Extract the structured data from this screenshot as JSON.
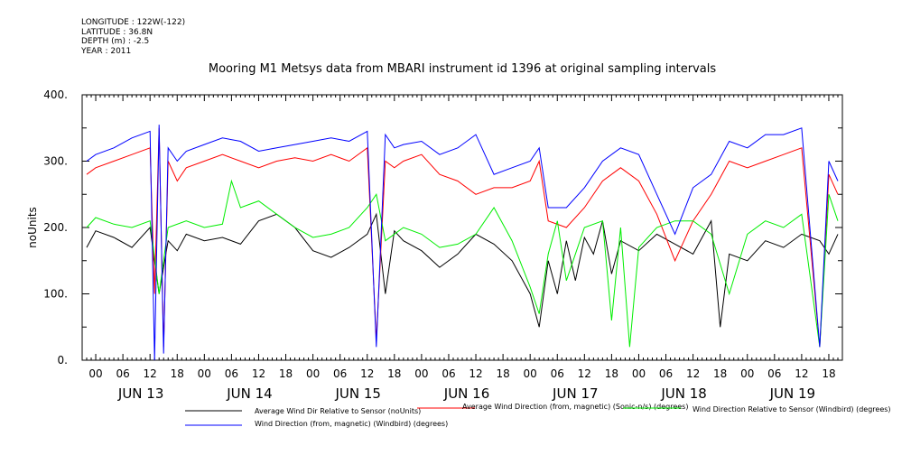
{
  "meta": {
    "longitude": "LONGITUDE : 122W(-122)",
    "latitude": "LATITUDE : 36.8N",
    "depth": "DEPTH (m) : -2.5",
    "year": "YEAR : 2011"
  },
  "chart_data": {
    "type": "line",
    "title": "Mooring M1 Metsys data from MBARI instrument id 1396 at original sampling intervals",
    "ylabel": "noUnits",
    "xlabel": "",
    "ylim": [
      0,
      400
    ],
    "yticks": [
      0,
      100,
      200,
      300,
      400
    ],
    "ytick_labels": [
      "0.",
      "100.",
      "200.",
      "300.",
      "400."
    ],
    "xlim_hours": [
      -3,
      165
    ],
    "hour_ticks": [
      "00",
      "06",
      "12",
      "18",
      "00",
      "06",
      "12",
      "18",
      "00",
      "06",
      "12",
      "18",
      "00",
      "06",
      "12",
      "18",
      "00",
      "06",
      "12",
      "18",
      "00",
      "06",
      "12",
      "18",
      "00",
      "06",
      "12",
      "18"
    ],
    "day_labels": [
      "JUN 13",
      "JUN 14",
      "JUN 15",
      "JUN 16",
      "JUN 17",
      "JUN 18",
      "JUN 19"
    ],
    "grid": false,
    "legend_position": "bottom",
    "series": [
      {
        "name": "Average Wind Dir Relative to Sensor (noUnits)",
        "color": "#000000",
        "x": [
          -2,
          0,
          4,
          8,
          12,
          14,
          16,
          18,
          20,
          24,
          28,
          32,
          36,
          40,
          44,
          48,
          52,
          56,
          60,
          62,
          64,
          66,
          68,
          72,
          76,
          80,
          84,
          88,
          92,
          96,
          98,
          100,
          102,
          104,
          106,
          108,
          110,
          112,
          114,
          116,
          120,
          124,
          128,
          132,
          136,
          138,
          140,
          144,
          148,
          152,
          156,
          160,
          162,
          164
        ],
        "y": [
          170,
          195,
          185,
          170,
          200,
          100,
          180,
          165,
          190,
          180,
          185,
          175,
          210,
          220,
          200,
          165,
          155,
          170,
          190,
          220,
          100,
          195,
          180,
          165,
          140,
          160,
          190,
          175,
          150,
          100,
          50,
          150,
          100,
          180,
          120,
          185,
          160,
          210,
          130,
          180,
          165,
          190,
          175,
          160,
          210,
          50,
          160,
          150,
          180,
          170,
          190,
          180,
          160,
          190
        ]
      },
      {
        "name": "Average Wind Direction (from, magnetic) (Sonic-n/s) (degrees)",
        "color": "#ff0000",
        "x": [
          -2,
          0,
          4,
          8,
          12,
          13,
          14,
          15,
          16,
          18,
          20,
          24,
          28,
          32,
          36,
          40,
          44,
          48,
          52,
          56,
          60,
          62,
          64,
          66,
          68,
          72,
          76,
          80,
          84,
          88,
          92,
          96,
          98,
          100,
          104,
          108,
          112,
          116,
          120,
          124,
          128,
          132,
          136,
          140,
          144,
          148,
          152,
          156,
          160,
          162,
          164
        ],
        "y": [
          280,
          290,
          300,
          310,
          320,
          100,
          350,
          20,
          300,
          270,
          290,
          300,
          310,
          300,
          290,
          300,
          305,
          300,
          310,
          300,
          320,
          30,
          300,
          290,
          300,
          310,
          280,
          270,
          250,
          260,
          260,
          270,
          300,
          210,
          200,
          230,
          270,
          290,
          270,
          220,
          150,
          210,
          250,
          300,
          290,
          300,
          310,
          320,
          20,
          280,
          250
        ]
      },
      {
        "name": "Wind Direction Relative to Sensor (Windbird) (degrees)",
        "color": "#00ee00",
        "x": [
          -2,
          0,
          4,
          8,
          12,
          14,
          16,
          20,
          24,
          28,
          30,
          32,
          36,
          40,
          44,
          48,
          52,
          56,
          60,
          62,
          64,
          68,
          72,
          76,
          80,
          84,
          88,
          92,
          96,
          98,
          100,
          102,
          104,
          108,
          112,
          114,
          116,
          118,
          120,
          124,
          128,
          132,
          136,
          140,
          144,
          148,
          152,
          156,
          160,
          162,
          164
        ],
        "y": [
          200,
          215,
          205,
          200,
          210,
          100,
          200,
          210,
          200,
          205,
          270,
          230,
          240,
          220,
          200,
          185,
          190,
          200,
          230,
          250,
          180,
          200,
          190,
          170,
          175,
          190,
          230,
          180,
          110,
          70,
          160,
          210,
          120,
          200,
          210,
          60,
          200,
          20,
          170,
          200,
          210,
          210,
          190,
          100,
          190,
          210,
          200,
          220,
          20,
          250,
          210
        ]
      },
      {
        "name": "Wind Direction (from, magnetic) (Windbird) (degrees)",
        "color": "#0000ff",
        "x": [
          -2,
          0,
          4,
          8,
          12,
          13,
          14,
          15,
          16,
          18,
          20,
          24,
          28,
          32,
          36,
          40,
          44,
          48,
          52,
          56,
          60,
          62,
          64,
          66,
          68,
          72,
          76,
          80,
          84,
          88,
          92,
          96,
          98,
          100,
          104,
          108,
          112,
          116,
          120,
          124,
          128,
          132,
          136,
          140,
          144,
          148,
          152,
          156,
          160,
          162,
          164
        ],
        "y": [
          300,
          310,
          320,
          335,
          345,
          0,
          355,
          10,
          320,
          300,
          315,
          325,
          335,
          330,
          315,
          320,
          325,
          330,
          335,
          330,
          345,
          20,
          340,
          320,
          325,
          330,
          310,
          320,
          340,
          280,
          290,
          300,
          320,
          230,
          230,
          260,
          300,
          320,
          310,
          250,
          190,
          260,
          280,
          330,
          320,
          340,
          340,
          350,
          20,
          300,
          270
        ]
      }
    ]
  }
}
